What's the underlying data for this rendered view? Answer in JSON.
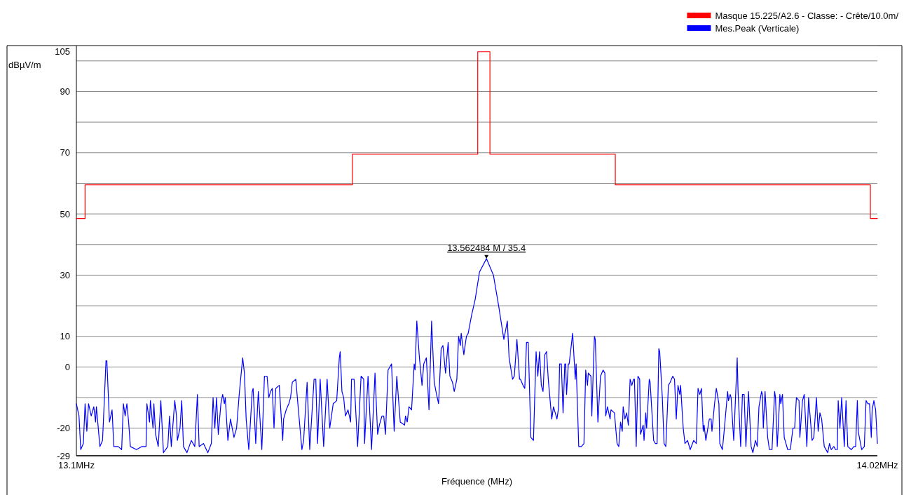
{
  "chart_data": {
    "type": "line",
    "xlabel": "Fréquence (MHz)",
    "ylabel": "dBµV/m",
    "xlim": [
      13.1,
      14.02
    ],
    "xticks": [
      {
        "value": 13.1,
        "label": "13.1MHz"
      },
      {
        "value": 14.02,
        "label": "14.02MHz"
      }
    ],
    "ylim": [
      -29,
      105
    ],
    "yticks": [
      -29,
      -20,
      {
        "value": -10,
        "label": null
      },
      0,
      10,
      {
        "value": 20,
        "label": null
      },
      30,
      {
        "value": 40,
        "label": null
      },
      50,
      {
        "value": 60,
        "label": null
      },
      70,
      {
        "value": 80,
        "label": null
      },
      90,
      {
        "value": 100,
        "label": null
      },
      105
    ],
    "grid": "y",
    "legend": "top right",
    "annotations": [
      {
        "text": "13.562484 M / 35.4",
        "x": 13.571,
        "y": 35.4
      }
    ],
    "series": [
      {
        "name": "Masque 15.225/A2.6 - Classe: - Crête/10.0m/",
        "color": "#ff0000",
        "x": [
          13.1,
          13.11,
          13.11,
          13.417,
          13.417,
          13.561,
          13.561,
          13.575,
          13.575,
          13.719,
          13.719,
          14.012,
          14.012,
          14.02
        ],
        "values": [
          48.5,
          48.5,
          59.5,
          59.5,
          69.5,
          69.5,
          103,
          103,
          69.5,
          69.5,
          59.5,
          59.5,
          48.5,
          48.5
        ]
      },
      {
        "name": "Mes.Peak (Verticale)",
        "color": "#0000ff",
        "x": [
          13.1,
          13.103,
          13.105,
          13.108,
          13.11,
          13.112,
          13.114,
          13.117,
          13.12,
          13.122,
          13.123,
          13.127,
          13.13,
          13.131,
          13.134,
          13.135,
          13.138,
          13.141,
          13.143,
          13.148,
          13.152,
          13.154,
          13.156,
          13.158,
          13.16,
          13.162,
          13.169,
          13.175,
          13.18,
          13.181,
          13.184,
          13.185,
          13.188,
          13.189,
          13.191,
          13.194,
          13.197,
          13.2,
          13.205,
          13.207,
          13.209,
          13.213,
          13.215,
          13.216,
          13.219,
          13.221,
          13.223,
          13.227,
          13.232,
          13.236,
          13.239,
          13.241,
          13.246,
          13.251,
          13.255,
          13.257,
          13.259,
          13.261,
          13.263,
          13.266,
          13.268,
          13.27,
          13.271,
          13.274,
          13.277,
          13.281,
          13.284,
          13.287,
          13.291,
          13.293,
          13.295,
          13.298,
          13.302,
          13.303,
          13.306,
          13.309,
          13.313,
          13.316,
          13.319,
          13.321,
          13.323,
          13.325,
          13.327,
          13.329,
          13.333,
          13.337,
          13.338,
          13.341,
          13.344,
          13.346,
          13.348,
          13.352,
          13.355,
          13.359,
          13.361,
          13.365,
          13.368,
          13.373,
          13.375,
          13.377,
          13.38,
          13.384,
          13.388,
          13.391,
          13.395,
          13.399,
          13.402,
          13.403,
          13.405,
          13.407,
          13.409,
          13.412,
          13.415,
          13.416,
          13.419,
          13.423,
          13.427,
          13.43,
          13.431,
          13.435,
          13.439,
          13.443,
          13.446,
          13.448,
          13.451,
          13.453,
          13.455,
          13.458,
          13.462,
          13.465,
          13.468,
          13.472,
          13.477,
          13.478,
          13.48,
          13.482,
          13.485,
          13.488,
          13.489,
          13.491,
          13.494,
          13.497,
          13.499,
          13.502,
          13.505,
          13.508,
          13.511,
          13.513,
          13.516,
          13.519,
          13.521,
          13.524,
          13.527,
          13.529,
          13.532,
          13.534,
          13.537,
          13.539,
          13.541,
          13.542,
          13.545,
          13.548,
          13.55,
          13.554,
          13.558,
          13.563,
          13.571,
          13.579,
          13.585,
          13.591,
          13.595,
          13.597,
          13.601,
          13.603,
          13.606,
          13.609,
          13.61,
          13.613,
          13.615,
          13.617,
          13.619,
          13.622,
          13.625,
          13.628,
          13.63,
          13.632,
          13.634,
          13.636,
          13.638,
          13.64,
          13.642,
          13.646,
          13.648,
          13.652,
          13.654,
          13.655,
          13.657,
          13.659,
          13.661,
          13.662,
          13.663,
          13.665,
          13.666,
          13.67,
          13.673,
          13.674,
          13.677,
          13.68,
          13.683,
          13.685,
          13.687,
          13.688,
          13.691,
          13.692,
          13.695,
          13.696,
          13.699,
          13.702,
          13.705,
          13.707,
          13.708,
          13.71,
          13.713,
          13.714,
          13.718,
          13.721,
          13.723,
          13.725,
          13.727,
          13.728,
          13.73,
          13.732,
          13.734,
          13.736,
          13.738,
          13.74,
          13.741,
          13.743,
          13.745,
          13.747,
          13.748,
          13.751,
          13.752,
          13.754,
          13.755,
          13.758,
          13.759,
          13.763,
          13.765,
          13.767,
          13.769,
          13.77,
          13.773,
          13.775,
          13.777,
          13.78,
          13.782,
          13.785,
          13.787,
          13.789,
          13.791,
          13.793,
          13.794,
          13.797,
          13.799,
          13.802,
          13.805,
          13.809,
          13.812,
          13.814,
          13.816,
          13.818,
          13.82,
          13.821,
          13.823,
          13.827,
          13.829,
          13.83,
          13.833,
          13.835,
          13.838,
          13.839,
          13.842,
          13.844,
          13.848,
          13.849,
          13.851,
          13.852,
          13.855,
          13.859,
          13.86,
          13.863,
          13.865,
          13.867,
          13.869,
          13.872,
          13.875,
          13.877,
          13.88,
          13.882,
          13.884,
          13.887,
          13.888,
          13.889,
          13.891,
          13.894,
          13.896,
          13.899,
          13.902,
          13.903,
          13.905,
          13.908,
          13.909,
          13.911,
          13.913,
          13.917,
          13.92,
          13.923,
          13.925,
          13.927,
          13.93,
          13.931,
          13.934,
          13.936,
          13.939,
          13.941,
          13.945,
          13.947,
          13.95,
          13.952,
          13.954,
          13.956,
          13.959,
          13.963,
          13.965,
          13.967,
          13.97,
          13.972,
          13.974,
          13.975,
          13.977,
          13.979,
          13.982,
          13.984,
          13.986,
          13.99,
          13.993,
          13.995,
          13.997,
          13.998,
          14.002,
          14.005,
          14.007,
          14.009,
          14.011,
          14.013,
          14.014,
          14.016,
          14.018,
          14.02
        ],
        "values": [
          -12,
          -16,
          -27,
          -25,
          -12,
          -21,
          -12,
          -16,
          -13,
          -18,
          -13,
          -26,
          -24,
          -18,
          2,
          2,
          -18,
          -14,
          -26,
          -26,
          -27,
          -12,
          -16,
          -12,
          -18,
          -26,
          -27,
          -26,
          -26,
          -12,
          -18,
          -11,
          -20,
          -12,
          -22,
          -26,
          -11,
          -28,
          -26,
          -16,
          -26,
          -11,
          -16,
          -24,
          -20,
          -11,
          -26,
          -28,
          -24,
          -26,
          -9,
          -26,
          -25,
          -28,
          -25,
          -10,
          -20,
          -10,
          -22,
          -12,
          -9,
          -12,
          -10,
          -24,
          -17,
          -23,
          -20,
          -9,
          3,
          -2,
          -17,
          -27,
          -8,
          -7,
          -25,
          -8,
          -27,
          -3,
          -3,
          -10,
          -8,
          -7,
          -20,
          -7,
          -6,
          -24,
          -17,
          -14,
          -12,
          -10,
          -5,
          -4,
          -14,
          -27,
          -24,
          -5,
          -27,
          -4,
          -4,
          -25,
          -4,
          -26,
          -4,
          -20,
          -12,
          -11,
          3,
          5,
          -8,
          -10,
          -16,
          -14,
          -18,
          -4,
          -4,
          -26,
          -3,
          -4,
          -25,
          -3,
          -27,
          -2,
          -22,
          -19,
          -16,
          -16,
          -22,
          -1,
          1,
          -21,
          -3,
          -18,
          -19,
          -16,
          -18,
          -13,
          -14,
          1,
          -1,
          15,
          3,
          -6,
          1,
          3,
          -14,
          15,
          -5,
          -8,
          -12,
          6,
          7,
          -2,
          8,
          -3,
          -5,
          -8,
          -4,
          10,
          7,
          11,
          4,
          10,
          11,
          17,
          22,
          31,
          35.4,
          30,
          20,
          9,
          15,
          3,
          -4,
          -3,
          9,
          -4,
          -4,
          -6,
          -7,
          8,
          8,
          -23,
          -24,
          5,
          -3,
          5,
          -6,
          -8,
          4,
          5,
          -4,
          -17,
          -13,
          -17,
          -13,
          1,
          1,
          -15,
          1,
          1,
          -9,
          1,
          1,
          11,
          -4,
          1,
          -26,
          -26,
          -25,
          -1,
          -6,
          -2,
          -3,
          -16,
          10,
          9,
          -18,
          -3,
          -1,
          -2,
          -16,
          -13,
          -17,
          -14,
          -15,
          -25,
          -26,
          -18,
          -21,
          -13,
          -17,
          -15,
          -19,
          -4,
          -6,
          -4,
          -4,
          -26,
          -3,
          -4,
          -22,
          -19,
          -24,
          -15,
          -20,
          -4,
          -5,
          -24,
          -25,
          -25,
          6,
          5,
          -10,
          -25,
          -26,
          -6,
          -5,
          -3,
          -4,
          -17,
          -6,
          -9,
          -6,
          -20,
          -25,
          -24,
          -27,
          -24,
          -25,
          -7,
          -9,
          -7,
          -21,
          -19,
          -24,
          -17,
          -17,
          -21,
          -12,
          -7,
          -12,
          -25,
          -27,
          -21,
          -8,
          -11,
          -9,
          -10,
          -24,
          3,
          -8,
          -26,
          -9,
          -9,
          -26,
          -8,
          -26,
          -28,
          -24,
          -26,
          -13,
          -8,
          -9,
          -20,
          -8,
          -23,
          -27,
          -27,
          -8,
          -10,
          -26,
          -9,
          -12,
          -9,
          -23,
          -27,
          -27,
          -20,
          -20,
          -10,
          -11,
          -23,
          -11,
          -9,
          -26,
          -10,
          -24,
          -23,
          -10,
          -21,
          -15,
          -17,
          -26,
          -28,
          -25,
          -27,
          -26,
          -27,
          -27,
          -11,
          -20,
          -10,
          -26,
          -11,
          -26,
          -27,
          -26,
          -26,
          -11,
          -21,
          -27,
          -26,
          -11,
          -12,
          -12,
          -23,
          -14,
          -11,
          -14,
          -25
        ]
      }
    ]
  }
}
